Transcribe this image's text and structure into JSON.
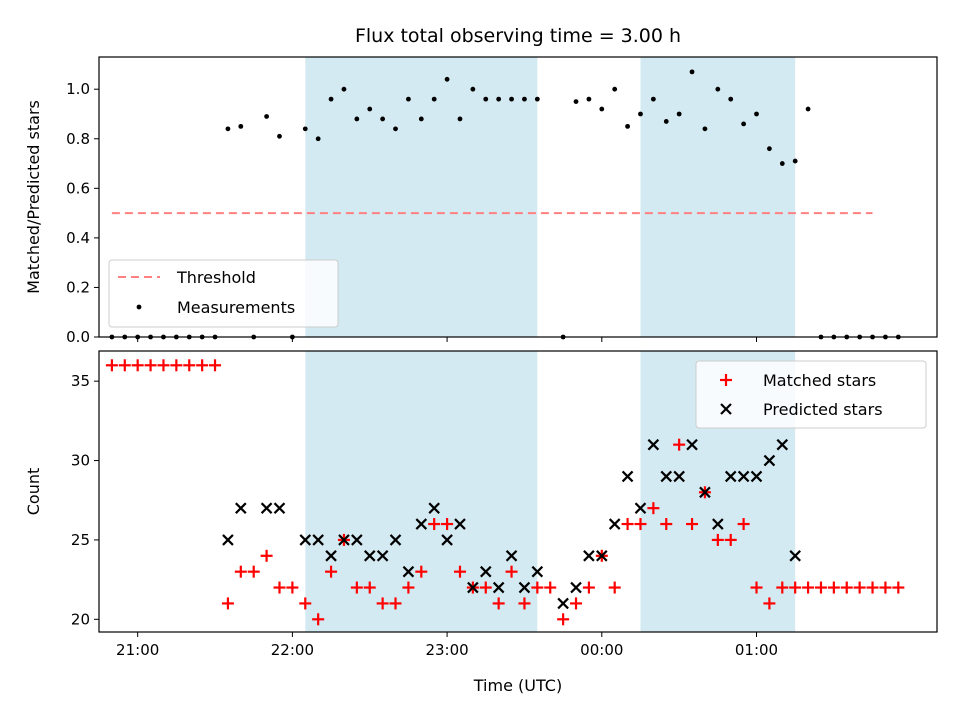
{
  "chart_data": [
    {
      "type": "scatter",
      "title": "Flux total observing time = 3.00 h",
      "xlabel": "",
      "ylabel": "Matched/Predicted stars",
      "xlim": [
        "20:45",
        "26:10"
      ],
      "ylim": [
        0,
        1.13
      ],
      "yticks": [
        0.0,
        0.2,
        0.4,
        0.6,
        0.8,
        1.0
      ],
      "yticklabels": [
        "0.0",
        "0.2",
        "0.4",
        "0.6",
        "0.8",
        "1.0"
      ],
      "xticks": [
        "21:00",
        "22:00",
        "23:00",
        "24:00",
        "25:00"
      ],
      "shaded_intervals": [
        [
          "22:05",
          "23:35"
        ],
        [
          "24:15",
          "25:15"
        ]
      ],
      "shade_color": "#add8e6",
      "legend_position": "lower left",
      "legend": [
        {
          "label": "Threshold",
          "style": "dashed-line",
          "color": "#ff8080"
        },
        {
          "label": "Measurements",
          "style": "dot",
          "color": "#000000"
        }
      ],
      "threshold": {
        "y": 0.5,
        "x_range": [
          "20:50",
          "25:45"
        ]
      },
      "series": [
        {
          "name": "Measurements",
          "color": "#000000",
          "points": [
            {
              "x": "20:50",
              "y": 0.0
            },
            {
              "x": "20:55",
              "y": 0.0
            },
            {
              "x": "21:00",
              "y": 0.0
            },
            {
              "x": "21:05",
              "y": 0.0
            },
            {
              "x": "21:10",
              "y": 0.0
            },
            {
              "x": "21:15",
              "y": 0.0
            },
            {
              "x": "21:20",
              "y": 0.0
            },
            {
              "x": "21:25",
              "y": 0.0
            },
            {
              "x": "21:30",
              "y": 0.0
            },
            {
              "x": "21:35",
              "y": 0.84
            },
            {
              "x": "21:40",
              "y": 0.85
            },
            {
              "x": "21:45",
              "y": 0.0
            },
            {
              "x": "21:50",
              "y": 0.89
            },
            {
              "x": "21:55",
              "y": 0.81
            },
            {
              "x": "22:00",
              "y": 0.0
            },
            {
              "x": "22:05",
              "y": 0.84
            },
            {
              "x": "22:10",
              "y": 0.8
            },
            {
              "x": "22:15",
              "y": 0.96
            },
            {
              "x": "22:20",
              "y": 1.0
            },
            {
              "x": "22:25",
              "y": 0.88
            },
            {
              "x": "22:30",
              "y": 0.92
            },
            {
              "x": "22:35",
              "y": 0.88
            },
            {
              "x": "22:40",
              "y": 0.84
            },
            {
              "x": "22:45",
              "y": 0.96
            },
            {
              "x": "22:50",
              "y": 0.88
            },
            {
              "x": "22:55",
              "y": 0.96
            },
            {
              "x": "23:00",
              "y": 1.04
            },
            {
              "x": "23:05",
              "y": 0.88
            },
            {
              "x": "23:10",
              "y": 1.0
            },
            {
              "x": "23:15",
              "y": 0.96
            },
            {
              "x": "23:20",
              "y": 0.96
            },
            {
              "x": "23:25",
              "y": 0.96
            },
            {
              "x": "23:30",
              "y": 0.96
            },
            {
              "x": "23:35",
              "y": 0.96
            },
            {
              "x": "23:45",
              "y": 0.0
            },
            {
              "x": "23:50",
              "y": 0.95
            },
            {
              "x": "23:55",
              "y": 0.96
            },
            {
              "x": "24:00",
              "y": 0.92
            },
            {
              "x": "24:05",
              "y": 1.0
            },
            {
              "x": "24:10",
              "y": 0.85
            },
            {
              "x": "24:15",
              "y": 0.9
            },
            {
              "x": "24:20",
              "y": 0.96
            },
            {
              "x": "24:25",
              "y": 0.87
            },
            {
              "x": "24:30",
              "y": 0.9
            },
            {
              "x": "24:35",
              "y": 1.07
            },
            {
              "x": "24:40",
              "y": 0.84
            },
            {
              "x": "24:45",
              "y": 1.0
            },
            {
              "x": "24:50",
              "y": 0.96
            },
            {
              "x": "24:55",
              "y": 0.86
            },
            {
              "x": "25:00",
              "y": 0.9
            },
            {
              "x": "25:05",
              "y": 0.76
            },
            {
              "x": "25:10",
              "y": 0.7
            },
            {
              "x": "25:15",
              "y": 0.71
            },
            {
              "x": "25:20",
              "y": 0.92
            },
            {
              "x": "25:25",
              "y": 0.0
            },
            {
              "x": "25:30",
              "y": 0.0
            },
            {
              "x": "25:35",
              "y": 0.0
            },
            {
              "x": "25:40",
              "y": 0.0
            },
            {
              "x": "25:45",
              "y": 0.0
            },
            {
              "x": "25:50",
              "y": 0.0
            },
            {
              "x": "25:55",
              "y": 0.0
            }
          ]
        }
      ]
    },
    {
      "type": "scatter",
      "title": "",
      "xlabel": "Time (UTC)",
      "ylabel": "Count",
      "xlim": [
        "20:45",
        "26:10"
      ],
      "ylim": [
        19.2,
        36.9
      ],
      "yticks": [
        20,
        25,
        30,
        35
      ],
      "yticklabels": [
        "20",
        "25",
        "30",
        "35"
      ],
      "xticks": [
        "21:00",
        "22:00",
        "23:00",
        "24:00",
        "25:00"
      ],
      "xticklabels": [
        "21:00",
        "22:00",
        "23:00",
        "00:00",
        "01:00"
      ],
      "shaded_intervals": [
        [
          "22:05",
          "23:35"
        ],
        [
          "24:15",
          "25:15"
        ]
      ],
      "shade_color": "#add8e6",
      "legend_position": "upper right",
      "legend": [
        {
          "label": "Matched stars",
          "style": "plus",
          "color": "#ff0000"
        },
        {
          "label": "Predicted stars",
          "style": "x",
          "color": "#000000"
        }
      ],
      "series": [
        {
          "name": "Matched stars",
          "color": "#ff0000",
          "marker": "plus",
          "points": [
            {
              "x": "20:50",
              "y": 36
            },
            {
              "x": "20:55",
              "y": 36
            },
            {
              "x": "21:00",
              "y": 36
            },
            {
              "x": "21:05",
              "y": 36
            },
            {
              "x": "21:10",
              "y": 36
            },
            {
              "x": "21:15",
              "y": 36
            },
            {
              "x": "21:20",
              "y": 36
            },
            {
              "x": "21:25",
              "y": 36
            },
            {
              "x": "21:30",
              "y": 36
            },
            {
              "x": "21:35",
              "y": 21
            },
            {
              "x": "21:40",
              "y": 23
            },
            {
              "x": "21:45",
              "y": 23
            },
            {
              "x": "21:50",
              "y": 24
            },
            {
              "x": "21:55",
              "y": 22
            },
            {
              "x": "22:00",
              "y": 22
            },
            {
              "x": "22:05",
              "y": 21
            },
            {
              "x": "22:10",
              "y": 20
            },
            {
              "x": "22:15",
              "y": 23
            },
            {
              "x": "22:20",
              "y": 25
            },
            {
              "x": "22:25",
              "y": 22
            },
            {
              "x": "22:30",
              "y": 22
            },
            {
              "x": "22:35",
              "y": 21
            },
            {
              "x": "22:40",
              "y": 21
            },
            {
              "x": "22:45",
              "y": 22
            },
            {
              "x": "22:50",
              "y": 23
            },
            {
              "x": "22:55",
              "y": 26
            },
            {
              "x": "23:00",
              "y": 26
            },
            {
              "x": "23:05",
              "y": 23
            },
            {
              "x": "23:10",
              "y": 22
            },
            {
              "x": "23:15",
              "y": 22
            },
            {
              "x": "23:20",
              "y": 21
            },
            {
              "x": "23:25",
              "y": 23
            },
            {
              "x": "23:30",
              "y": 21
            },
            {
              "x": "23:35",
              "y": 22
            },
            {
              "x": "23:40",
              "y": 22
            },
            {
              "x": "23:45",
              "y": 20
            },
            {
              "x": "23:50",
              "y": 21
            },
            {
              "x": "23:55",
              "y": 22
            },
            {
              "x": "24:00",
              "y": 24
            },
            {
              "x": "24:05",
              "y": 22
            },
            {
              "x": "24:10",
              "y": 26
            },
            {
              "x": "24:15",
              "y": 26
            },
            {
              "x": "24:20",
              "y": 27
            },
            {
              "x": "24:25",
              "y": 26
            },
            {
              "x": "24:30",
              "y": 31
            },
            {
              "x": "24:35",
              "y": 26
            },
            {
              "x": "24:40",
              "y": 28
            },
            {
              "x": "24:45",
              "y": 25
            },
            {
              "x": "24:50",
              "y": 25
            },
            {
              "x": "24:55",
              "y": 26
            },
            {
              "x": "25:00",
              "y": 22
            },
            {
              "x": "25:05",
              "y": 21
            },
            {
              "x": "25:10",
              "y": 22
            },
            {
              "x": "25:15",
              "y": 22
            },
            {
              "x": "25:20",
              "y": 22
            },
            {
              "x": "25:25",
              "y": 22
            },
            {
              "x": "25:30",
              "y": 22
            },
            {
              "x": "25:35",
              "y": 22
            },
            {
              "x": "25:40",
              "y": 22
            },
            {
              "x": "25:45",
              "y": 22
            },
            {
              "x": "25:50",
              "y": 22
            },
            {
              "x": "25:55",
              "y": 22
            }
          ]
        },
        {
          "name": "Predicted stars",
          "color": "#000000",
          "marker": "x",
          "points": [
            {
              "x": "21:35",
              "y": 25
            },
            {
              "x": "21:40",
              "y": 27
            },
            {
              "x": "21:50",
              "y": 27
            },
            {
              "x": "21:55",
              "y": 27
            },
            {
              "x": "22:05",
              "y": 25
            },
            {
              "x": "22:10",
              "y": 25
            },
            {
              "x": "22:15",
              "y": 24
            },
            {
              "x": "22:20",
              "y": 25
            },
            {
              "x": "22:25",
              "y": 25
            },
            {
              "x": "22:30",
              "y": 24
            },
            {
              "x": "22:35",
              "y": 24
            },
            {
              "x": "22:40",
              "y": 25
            },
            {
              "x": "22:45",
              "y": 23
            },
            {
              "x": "22:50",
              "y": 26
            },
            {
              "x": "22:55",
              "y": 27
            },
            {
              "x": "23:00",
              "y": 25
            },
            {
              "x": "23:05",
              "y": 26
            },
            {
              "x": "23:10",
              "y": 22
            },
            {
              "x": "23:15",
              "y": 23
            },
            {
              "x": "23:20",
              "y": 22
            },
            {
              "x": "23:25",
              "y": 24
            },
            {
              "x": "23:30",
              "y": 22
            },
            {
              "x": "23:35",
              "y": 23
            },
            {
              "x": "23:45",
              "y": 21
            },
            {
              "x": "23:50",
              "y": 22
            },
            {
              "x": "23:55",
              "y": 24
            },
            {
              "x": "24:00",
              "y": 24
            },
            {
              "x": "24:05",
              "y": 26
            },
            {
              "x": "24:10",
              "y": 29
            },
            {
              "x": "24:15",
              "y": 27
            },
            {
              "x": "24:20",
              "y": 31
            },
            {
              "x": "24:25",
              "y": 29
            },
            {
              "x": "24:30",
              "y": 29
            },
            {
              "x": "24:35",
              "y": 31
            },
            {
              "x": "24:40",
              "y": 28
            },
            {
              "x": "24:45",
              "y": 26
            },
            {
              "x": "24:50",
              "y": 29
            },
            {
              "x": "24:55",
              "y": 29
            },
            {
              "x": "25:00",
              "y": 29
            },
            {
              "x": "25:05",
              "y": 30
            },
            {
              "x": "25:10",
              "y": 31
            },
            {
              "x": "25:15",
              "y": 24
            }
          ]
        }
      ]
    }
  ]
}
